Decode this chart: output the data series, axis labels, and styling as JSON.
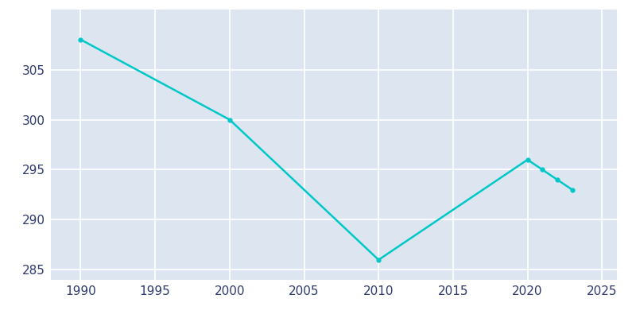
{
  "years": [
    1990,
    2000,
    2010,
    2020,
    2021,
    2022,
    2023
  ],
  "population": [
    308,
    300,
    286,
    296,
    295,
    294,
    293
  ],
  "line_color": "#00C8C8",
  "marker_style": "o",
  "marker_size": 3.5,
  "background_color": "#dde6f0",
  "plot_bg_color": "#dde6f0",
  "fig_bg_color": "#ffffff",
  "grid_color": "#ffffff",
  "xlim": [
    1988,
    2026
  ],
  "ylim": [
    284,
    311
  ],
  "xticks": [
    1990,
    1995,
    2000,
    2005,
    2010,
    2015,
    2020,
    2025
  ],
  "yticks": [
    285,
    290,
    295,
    300,
    305
  ],
  "tick_color": "#2e3a6e",
  "tick_labelsize": 11
}
